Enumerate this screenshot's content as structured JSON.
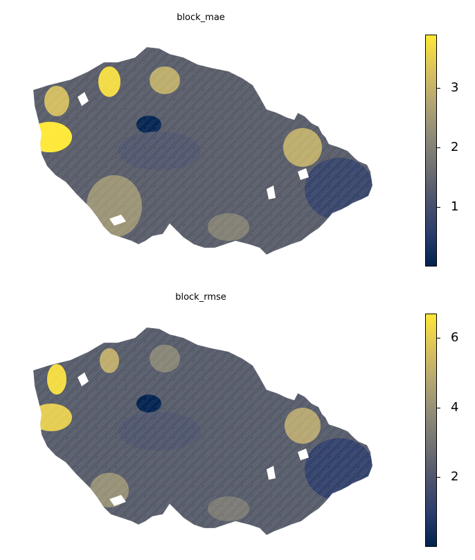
{
  "colormap": {
    "name": "cividis",
    "stops": [
      "#00224e",
      "#2b3d6c",
      "#4d546d",
      "#707173",
      "#908c78",
      "#b5a772",
      "#dcc35c",
      "#fee838"
    ]
  },
  "panels": [
    {
      "id": "mae",
      "title": "block_mae",
      "colorbar": {
        "min": 0.0,
        "max": 3.9,
        "ticks": [
          "1",
          "2",
          "3"
        ],
        "tick_values": [
          1,
          2,
          3
        ]
      },
      "regions": [
        {
          "name": "west-yellow",
          "value": 3.9
        },
        {
          "name": "northwest-tan",
          "value": 3.2
        },
        {
          "name": "north-yellow",
          "value": 3.7
        },
        {
          "name": "north-tan",
          "value": 2.9
        },
        {
          "name": "prague-dark",
          "value": 0.1
        },
        {
          "name": "central-blue",
          "value": 1.2
        },
        {
          "name": "southwest-tan",
          "value": 2.4
        },
        {
          "name": "northeast-tan",
          "value": 2.9
        },
        {
          "name": "east-blue",
          "value": 0.8
        },
        {
          "name": "south-grey",
          "value": 2.0
        }
      ]
    },
    {
      "id": "rmse",
      "title": "block_rmse",
      "colorbar": {
        "min": 0.0,
        "max": 6.7,
        "ticks": [
          "2",
          "4",
          "6"
        ],
        "tick_values": [
          2,
          4,
          6
        ]
      },
      "regions": [
        {
          "name": "west-yellow",
          "value": 6.0
        },
        {
          "name": "northwest-yellow",
          "value": 6.4
        },
        {
          "name": "north-tan",
          "value": 5.0
        },
        {
          "name": "north-grey",
          "value": 3.6
        },
        {
          "name": "prague-dark",
          "value": 0.1
        },
        {
          "name": "central-blue",
          "value": 2.0
        },
        {
          "name": "southwest-tan",
          "value": 4.0
        },
        {
          "name": "northeast-tan",
          "value": 4.8
        },
        {
          "name": "east-blue",
          "value": 1.2
        },
        {
          "name": "south-grey",
          "value": 3.2
        }
      ]
    }
  ]
}
